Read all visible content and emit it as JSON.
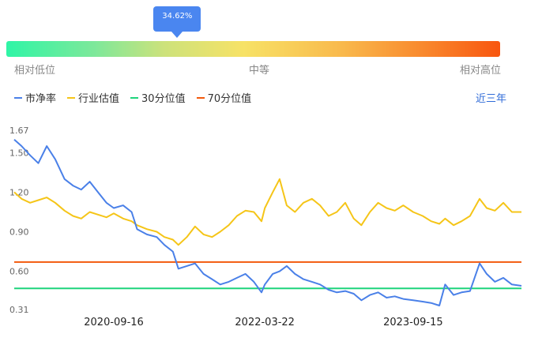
{
  "gauge": {
    "value_label": "34.62%",
    "value_fraction": 0.3462,
    "low_label": "相对低位",
    "mid_label": "中等",
    "high_label": "相对高位",
    "color_stops": [
      "#2ff5a6",
      "#f7e266",
      "#f8560f"
    ]
  },
  "legend": {
    "items": [
      {
        "label": "市净率",
        "color": "#4a80e8"
      },
      {
        "label": "行业估值",
        "color": "#f5c518"
      },
      {
        "label": "30分位值",
        "color": "#1ed47c"
      },
      {
        "label": "70分位值",
        "color": "#f35a0c"
      }
    ]
  },
  "range_selector": {
    "label": "近三年"
  },
  "chart_data": {
    "type": "line",
    "y_ticks": [
      "1.67",
      "1.50",
      "1.20",
      "0.90",
      "0.60",
      "0.31"
    ],
    "ylim": [
      0.31,
      1.67
    ],
    "x_ticks": [
      "2020-09-16",
      "2022-03-22",
      "2023-09-15"
    ],
    "x_range": [
      "2019-09-18",
      "2024-10-15"
    ],
    "series": [
      {
        "name": "市净率",
        "color": "#4a80e8",
        "points": [
          [
            "2019-09-18",
            1.6
          ],
          [
            "2019-10-15",
            1.55
          ],
          [
            "2019-11-15",
            1.48
          ],
          [
            "2019-12-15",
            1.42
          ],
          [
            "2020-01-15",
            1.55
          ],
          [
            "2020-02-15",
            1.45
          ],
          [
            "2020-03-20",
            1.3
          ],
          [
            "2020-04-20",
            1.25
          ],
          [
            "2020-05-20",
            1.22
          ],
          [
            "2020-06-20",
            1.28
          ],
          [
            "2020-07-20",
            1.2
          ],
          [
            "2020-08-20",
            1.12
          ],
          [
            "2020-09-16",
            1.08
          ],
          [
            "2020-10-20",
            1.1
          ],
          [
            "2020-11-20",
            1.05
          ],
          [
            "2020-12-10",
            0.92
          ],
          [
            "2021-01-15",
            0.88
          ],
          [
            "2021-02-20",
            0.86
          ],
          [
            "2021-03-20",
            0.8
          ],
          [
            "2021-04-20",
            0.75
          ],
          [
            "2021-05-10",
            0.62
          ],
          [
            "2021-06-10",
            0.64
          ],
          [
            "2021-07-10",
            0.66
          ],
          [
            "2021-08-10",
            0.58
          ],
          [
            "2021-09-10",
            0.54
          ],
          [
            "2021-10-10",
            0.5
          ],
          [
            "2021-11-10",
            0.52
          ],
          [
            "2021-12-10",
            0.55
          ],
          [
            "2022-01-10",
            0.58
          ],
          [
            "2022-02-10",
            0.52
          ],
          [
            "2022-03-10",
            0.44
          ],
          [
            "2022-03-22",
            0.5
          ],
          [
            "2022-04-20",
            0.58
          ],
          [
            "2022-05-15",
            0.6
          ],
          [
            "2022-06-10",
            0.64
          ],
          [
            "2022-07-10",
            0.58
          ],
          [
            "2022-08-10",
            0.54
          ],
          [
            "2022-09-10",
            0.52
          ],
          [
            "2022-10-10",
            0.5
          ],
          [
            "2022-11-10",
            0.46
          ],
          [
            "2022-12-10",
            0.44
          ],
          [
            "2023-01-10",
            0.45
          ],
          [
            "2023-02-10",
            0.43
          ],
          [
            "2023-03-10",
            0.38
          ],
          [
            "2023-04-10",
            0.42
          ],
          [
            "2023-05-10",
            0.44
          ],
          [
            "2023-06-10",
            0.4
          ],
          [
            "2023-07-10",
            0.41
          ],
          [
            "2023-08-10",
            0.39
          ],
          [
            "2023-09-15",
            0.38
          ],
          [
            "2023-10-20",
            0.37
          ],
          [
            "2023-11-20",
            0.36
          ],
          [
            "2023-12-20",
            0.34
          ],
          [
            "2024-01-10",
            0.5
          ],
          [
            "2024-02-10",
            0.42
          ],
          [
            "2024-03-10",
            0.44
          ],
          [
            "2024-04-10",
            0.45
          ],
          [
            "2024-05-15",
            0.66
          ],
          [
            "2024-06-10",
            0.58
          ],
          [
            "2024-07-10",
            0.52
          ],
          [
            "2024-08-10",
            0.55
          ],
          [
            "2024-09-10",
            0.5
          ],
          [
            "2024-10-15",
            0.49
          ]
        ]
      },
      {
        "name": "行业估值",
        "color": "#f5c518",
        "points": [
          [
            "2019-09-18",
            1.2
          ],
          [
            "2019-10-15",
            1.15
          ],
          [
            "2019-11-15",
            1.12
          ],
          [
            "2019-12-15",
            1.14
          ],
          [
            "2020-01-15",
            1.16
          ],
          [
            "2020-02-15",
            1.12
          ],
          [
            "2020-03-20",
            1.06
          ],
          [
            "2020-04-20",
            1.02
          ],
          [
            "2020-05-20",
            1.0
          ],
          [
            "2020-06-20",
            1.05
          ],
          [
            "2020-07-20",
            1.03
          ],
          [
            "2020-08-20",
            1.01
          ],
          [
            "2020-09-16",
            1.04
          ],
          [
            "2020-10-20",
            1.0
          ],
          [
            "2020-11-20",
            0.98
          ],
          [
            "2020-12-10",
            0.95
          ],
          [
            "2021-01-15",
            0.92
          ],
          [
            "2021-02-20",
            0.9
          ],
          [
            "2021-03-20",
            0.86
          ],
          [
            "2021-04-20",
            0.84
          ],
          [
            "2021-05-10",
            0.8
          ],
          [
            "2021-06-10",
            0.86
          ],
          [
            "2021-07-10",
            0.94
          ],
          [
            "2021-08-10",
            0.88
          ],
          [
            "2021-09-10",
            0.86
          ],
          [
            "2021-10-10",
            0.9
          ],
          [
            "2021-11-10",
            0.95
          ],
          [
            "2021-12-10",
            1.02
          ],
          [
            "2022-01-10",
            1.06
          ],
          [
            "2022-02-10",
            1.05
          ],
          [
            "2022-03-10",
            0.98
          ],
          [
            "2022-03-22",
            1.08
          ],
          [
            "2022-04-20",
            1.2
          ],
          [
            "2022-05-15",
            1.3
          ],
          [
            "2022-06-10",
            1.1
          ],
          [
            "2022-07-10",
            1.05
          ],
          [
            "2022-08-10",
            1.12
          ],
          [
            "2022-09-10",
            1.15
          ],
          [
            "2022-10-10",
            1.1
          ],
          [
            "2022-11-10",
            1.02
          ],
          [
            "2022-12-10",
            1.05
          ],
          [
            "2023-01-10",
            1.12
          ],
          [
            "2023-02-10",
            1.0
          ],
          [
            "2023-03-10",
            0.95
          ],
          [
            "2023-04-10",
            1.05
          ],
          [
            "2023-05-10",
            1.12
          ],
          [
            "2023-06-10",
            1.08
          ],
          [
            "2023-07-10",
            1.06
          ],
          [
            "2023-08-10",
            1.1
          ],
          [
            "2023-09-15",
            1.05
          ],
          [
            "2023-10-20",
            1.02
          ],
          [
            "2023-11-20",
            0.98
          ],
          [
            "2023-12-20",
            0.96
          ],
          [
            "2024-01-10",
            1.0
          ],
          [
            "2024-02-10",
            0.95
          ],
          [
            "2024-03-10",
            0.98
          ],
          [
            "2024-04-10",
            1.02
          ],
          [
            "2024-05-15",
            1.15
          ],
          [
            "2024-06-10",
            1.08
          ],
          [
            "2024-07-10",
            1.06
          ],
          [
            "2024-08-10",
            1.12
          ],
          [
            "2024-09-10",
            1.05
          ],
          [
            "2024-10-15",
            1.05
          ]
        ]
      },
      {
        "name": "30分位值",
        "color": "#1ed47c",
        "constant": 0.47
      },
      {
        "name": "70分位值",
        "color": "#f35a0c",
        "constant": 0.67
      }
    ]
  }
}
